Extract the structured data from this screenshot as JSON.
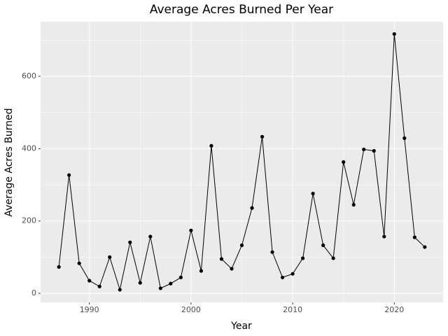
{
  "chart_data": {
    "type": "line",
    "title": "Average Acres Burned Per Year",
    "x_label": "Year",
    "y_label": "Average Acres Burned",
    "x": [
      1987,
      1988,
      1989,
      1990,
      1991,
      1992,
      1993,
      1994,
      1995,
      1996,
      1997,
      1998,
      1999,
      2000,
      2001,
      2002,
      2003,
      2004,
      2005,
      2006,
      2007,
      2008,
      2009,
      2010,
      2011,
      2012,
      2013,
      2014,
      2015,
      2016,
      2017,
      2018,
      2019,
      2020,
      2021,
      2022,
      2023
    ],
    "series": [
      {
        "name": "Average Acres Burned",
        "color": "#000000",
        "values": [
          73,
          327,
          83,
          35,
          19,
          100,
          10,
          141,
          29,
          157,
          14,
          27,
          44,
          174,
          62,
          408,
          95,
          68,
          133,
          236,
          433,
          114,
          44,
          54,
          97,
          276,
          133,
          97,
          363,
          245,
          398,
          394,
          157,
          717,
          429,
          155,
          128
        ]
      }
    ],
    "xlim": [
      1985.2,
      2024.8
    ],
    "xticks": [
      1990,
      2000,
      2010,
      2020
    ],
    "ylim": [
      -25,
      751
    ],
    "yticks": [
      0,
      200,
      400,
      600
    ],
    "grid": true,
    "panel_color": "#ebebeb"
  }
}
